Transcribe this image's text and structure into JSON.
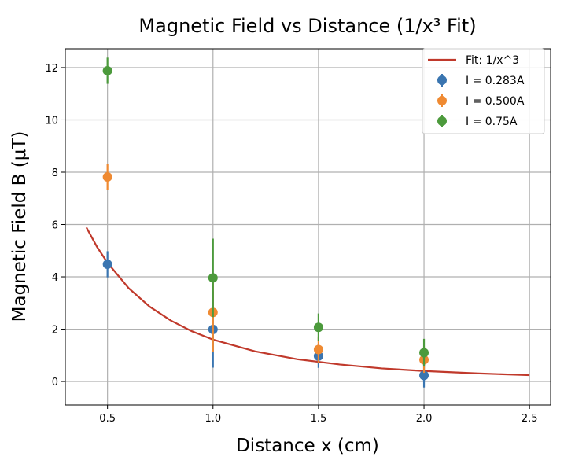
{
  "chart_data": {
    "type": "scatter",
    "title": "Magnetic Field vs Distance (1/x³ Fit)",
    "xlabel": "Distance x (cm)",
    "ylabel": "Magnetic Field B (μT)",
    "xlim": [
      0.3,
      2.6
    ],
    "ylim": [
      -0.9,
      12.72
    ],
    "xticks": [
      0.5,
      1.0,
      1.5,
      2.0,
      2.5
    ],
    "xtick_labels": [
      "0.5",
      "1.0",
      "1.5",
      "2.0",
      "2.5"
    ],
    "yticks": [
      0,
      2,
      4,
      6,
      8,
      10,
      12
    ],
    "ytick_labels": [
      "0",
      "2",
      "4",
      "6",
      "8",
      "10",
      "12"
    ],
    "grid": true,
    "legend_position": "top-right",
    "fit": {
      "name": "Fit: 1/x^3",
      "color": "#c0392b",
      "x": [
        0.4,
        0.45,
        0.5,
        0.6,
        0.7,
        0.8,
        0.9,
        1.0,
        1.2,
        1.4,
        1.6,
        1.8,
        2.0,
        2.25,
        2.5
      ],
      "y": [
        5.89,
        5.15,
        4.54,
        3.57,
        2.86,
        2.33,
        1.92,
        1.6,
        1.15,
        0.85,
        0.65,
        0.5,
        0.4,
        0.31,
        0.24
      ]
    },
    "series": [
      {
        "name": "I = 0.283A",
        "color": "#3a75b0",
        "x": [
          0.5,
          1.0,
          1.5,
          2.0
        ],
        "y": [
          4.48,
          1.99,
          0.97,
          0.23
        ],
        "yerr": [
          0.5,
          1.46,
          0.45,
          0.46
        ]
      },
      {
        "name": "I = 0.500A",
        "color": "#ef8a32",
        "x": [
          0.5,
          1.0,
          1.5,
          2.0
        ],
        "y": [
          7.82,
          2.64,
          1.22,
          0.83
        ],
        "yerr": [
          0.5,
          1.5,
          0.5,
          0.5
        ]
      },
      {
        "name": "I = 0.75A",
        "color": "#4c9a3c",
        "x": [
          0.5,
          1.0,
          1.5,
          2.0
        ],
        "y": [
          11.88,
          3.96,
          2.07,
          1.1
        ],
        "yerr": [
          0.5,
          1.5,
          0.53,
          0.53
        ]
      }
    ]
  }
}
